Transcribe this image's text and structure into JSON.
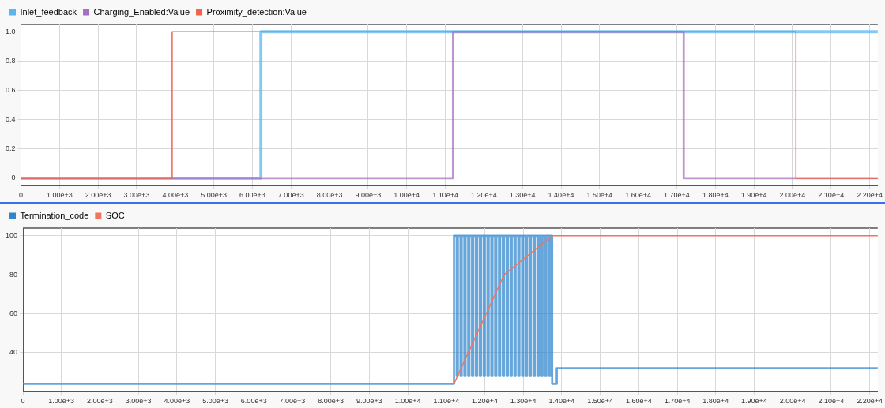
{
  "chart_data": [
    {
      "type": "step",
      "legend": "top left",
      "grid": true,
      "marker": "none",
      "line_style": "solid",
      "xlim": [
        0,
        22210
      ],
      "ylim": [
        -0.05,
        1.05
      ],
      "xticks": [
        0,
        {
          "value": 1000,
          "label": "1.00e+3"
        },
        {
          "value": 2000,
          "label": "2.00e+3"
        },
        {
          "value": 3000,
          "label": "3.00e+3"
        },
        {
          "value": 4000,
          "label": "4.00e+3"
        },
        {
          "value": 5000,
          "label": "5.00e+3"
        },
        {
          "value": 6000,
          "label": "6.00e+3"
        },
        {
          "value": 7000,
          "label": "7.00e+3"
        },
        {
          "value": 8000,
          "label": "8.00e+3"
        },
        {
          "value": 9000,
          "label": "9.00e+3"
        },
        {
          "value": 10000,
          "label": "1.00e+4"
        },
        {
          "value": 11000,
          "label": "1.10e+4"
        },
        {
          "value": 12000,
          "label": "1.20e+4"
        },
        {
          "value": 13000,
          "label": "1.30e+4"
        },
        {
          "value": 14000,
          "label": "1.40e+4"
        },
        {
          "value": 15000,
          "label": "1.50e+4"
        },
        {
          "value": 16000,
          "label": "1.60e+4"
        },
        {
          "value": 17000,
          "label": "1.70e+4"
        },
        {
          "value": 18000,
          "label": "1.80e+4"
        },
        {
          "value": 19000,
          "label": "1.90e+4"
        },
        {
          "value": 20000,
          "label": "2.00e+4"
        },
        {
          "value": 21000,
          "label": "2.10e+4"
        },
        {
          "value": 22000,
          "label": "2.20e+4"
        }
      ],
      "yticks": [
        0,
        0.2,
        0.4,
        0.6,
        0.8,
        {
          "value": 1,
          "label": "1.0"
        }
      ],
      "series": [
        {
          "name": "Inlet_feedback",
          "color": "#5ab4f0",
          "x": [
            0,
            6220,
            22210
          ],
          "values": [
            0,
            1,
            1
          ]
        },
        {
          "name": "Charging_Enabled:Value",
          "color": "#a66fc0",
          "x": [
            0,
            11200,
            17180,
            22210
          ],
          "values": [
            0,
            1,
            0,
            0
          ]
        },
        {
          "name": "Proximity_detection:Value",
          "color": "#f0654a",
          "x": [
            0,
            3920,
            20090,
            22210
          ],
          "values": [
            0,
            1,
            0,
            0
          ]
        }
      ]
    },
    {
      "type": "step",
      "legend": "top left",
      "grid": true,
      "marker": "none",
      "line_style": "solid",
      "xlim": [
        0,
        22210
      ],
      "ylim": [
        20,
        104
      ],
      "xticks": [
        0,
        {
          "value": 1000,
          "label": "1.00e+3"
        },
        {
          "value": 2000,
          "label": "2.00e+3"
        },
        {
          "value": 3000,
          "label": "3.00e+3"
        },
        {
          "value": 4000,
          "label": "4.00e+3"
        },
        {
          "value": 5000,
          "label": "5.00e+3"
        },
        {
          "value": 6000,
          "label": "6.00e+3"
        },
        {
          "value": 7000,
          "label": "7.00e+3"
        },
        {
          "value": 8000,
          "label": "8.00e+3"
        },
        {
          "value": 9000,
          "label": "9.00e+3"
        },
        {
          "value": 10000,
          "label": "1.00e+4"
        },
        {
          "value": 11000,
          "label": "1.10e+4"
        },
        {
          "value": 12000,
          "label": "1.20e+4"
        },
        {
          "value": 13000,
          "label": "1.30e+4"
        },
        {
          "value": 14000,
          "label": "1.40e+4"
        },
        {
          "value": 15000,
          "label": "1.50e+4"
        },
        {
          "value": 16000,
          "label": "1.60e+4"
        },
        {
          "value": 17000,
          "label": "1.70e+4"
        },
        {
          "value": 18000,
          "label": "1.80e+4"
        },
        {
          "value": 19000,
          "label": "1.90e+4"
        },
        {
          "value": 20000,
          "label": "2.00e+4"
        },
        {
          "value": 21000,
          "label": "2.10e+4"
        },
        {
          "value": 22000,
          "label": "2.20e+4"
        }
      ],
      "yticks": [
        40,
        60,
        80,
        100
      ],
      "series": [
        {
          "name": "Termination_code",
          "color": "#2f86cc",
          "x": [
            0,
            11200,
            11270,
            11300,
            11370,
            11400,
            11470,
            11500,
            11570,
            11600,
            11670,
            11700,
            11770,
            11800,
            11870,
            11900,
            11970,
            12000,
            12070,
            12100,
            12170,
            12200,
            12270,
            12300,
            12370,
            12400,
            12470,
            12500,
            12570,
            12600,
            12670,
            12700,
            12770,
            12800,
            12870,
            12900,
            12970,
            13000,
            13070,
            13100,
            13170,
            13200,
            13270,
            13300,
            13370,
            13400,
            13470,
            13500,
            13570,
            13600,
            13670,
            13700,
            13750,
            13870,
            22210
          ],
          "values": [
            24,
            100,
            28,
            100,
            28,
            100,
            28,
            100,
            28,
            100,
            28,
            100,
            28,
            100,
            28,
            100,
            28,
            100,
            28,
            100,
            28,
            100,
            28,
            100,
            28,
            100,
            28,
            100,
            28,
            100,
            28,
            100,
            28,
            100,
            28,
            100,
            28,
            100,
            28,
            100,
            28,
            100,
            28,
            100,
            28,
            100,
            28,
            100,
            28,
            100,
            28,
            100,
            24,
            32,
            32
          ]
        },
        {
          "name": "SOC",
          "type": "line",
          "color": "#f07560",
          "x": [
            0,
            11200,
            12500,
            13750,
            22210
          ],
          "values": [
            24,
            24,
            80,
            100,
            100
          ]
        }
      ]
    }
  ]
}
